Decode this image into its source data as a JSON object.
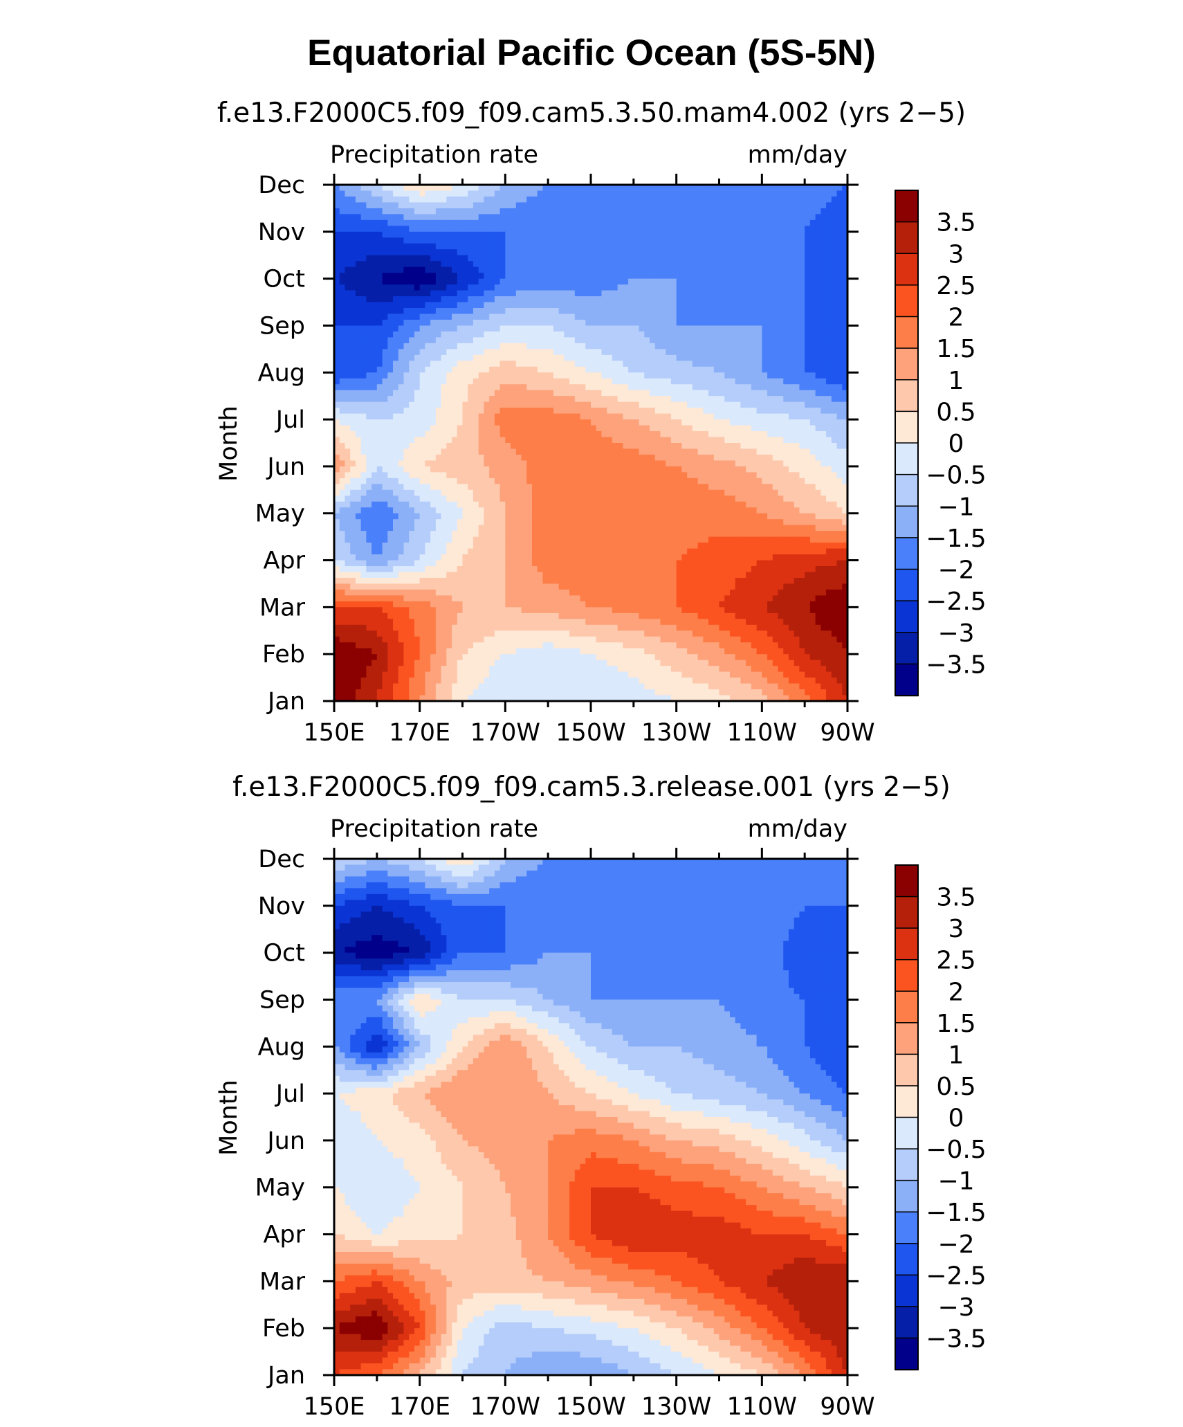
{
  "figure": {
    "title": "Equatorial Pacific Ocean (5S-5N)"
  },
  "chart_data": [
    {
      "type": "heatmap",
      "subtitle": "f.e13.F2000C5.f09_f09.cam5.3.50.mam4.002 (yrs 2−5)",
      "left_string": "Precipitation rate",
      "right_string": "mm/day",
      "ylabel": "Month",
      "xlabel": "",
      "x_tick_labels": [
        "150E",
        "170E",
        "170W",
        "150W",
        "130W",
        "110W",
        "90W"
      ],
      "y_tick_labels": [
        "Jan",
        "Feb",
        "Mar",
        "Apr",
        "May",
        "Jun",
        "Jul",
        "Aug",
        "Sep",
        "Oct",
        "Nov",
        "Dec"
      ],
      "xlim": [
        150,
        270
      ],
      "ylim": [
        "Jan",
        "Dec"
      ],
      "lon_columns": [
        150,
        160,
        170,
        180,
        190,
        200,
        210,
        220,
        230,
        240,
        250,
        260,
        270
      ],
      "values": [
        [
          4.0,
          3.0,
          1.5,
          0.0,
          -0.5,
          -0.5,
          -0.5,
          -0.3,
          0.0,
          0.3,
          0.8,
          1.8,
          3.0
        ],
        [
          4.0,
          3.5,
          2.0,
          0.5,
          0.0,
          -0.3,
          0.0,
          0.3,
          0.8,
          1.3,
          2.0,
          3.0,
          3.5
        ],
        [
          2.5,
          2.5,
          1.8,
          1.0,
          1.0,
          1.2,
          1.5,
          1.7,
          2.0,
          2.5,
          3.0,
          3.5,
          4.0
        ],
        [
          -0.5,
          -1.5,
          -0.5,
          0.5,
          1.0,
          1.8,
          1.8,
          1.8,
          2.0,
          2.2,
          2.5,
          2.8,
          3.0
        ],
        [
          -1.0,
          -2.0,
          -1.0,
          0.0,
          1.0,
          1.8,
          1.8,
          1.8,
          1.8,
          1.8,
          1.5,
          1.0,
          0.5
        ],
        [
          1.5,
          -0.5,
          0.5,
          0.8,
          1.2,
          1.8,
          1.8,
          1.8,
          1.5,
          1.2,
          0.8,
          0.3,
          -0.3
        ],
        [
          0.0,
          -0.5,
          -0.3,
          0.5,
          1.8,
          1.8,
          1.5,
          1.0,
          0.5,
          0.0,
          -0.3,
          -0.5,
          -1.0
        ],
        [
          -2.5,
          -2.0,
          -0.5,
          0.3,
          0.8,
          0.5,
          0.0,
          -0.5,
          -0.8,
          -1.0,
          -1.5,
          -2.0,
          -2.5
        ],
        [
          -2.5,
          -2.5,
          -1.5,
          -1.0,
          -0.5,
          -0.5,
          -1.0,
          -1.0,
          -1.5,
          -1.5,
          -1.5,
          -2.0,
          -2.5
        ],
        [
          -3.0,
          -3.5,
          -4.0,
          -3.0,
          -2.0,
          -1.8,
          -1.8,
          -1.5,
          -1.5,
          -1.5,
          -1.5,
          -2.0,
          -2.5
        ],
        [
          -2.5,
          -2.5,
          -2.0,
          -2.0,
          -2.0,
          -2.0,
          -1.8,
          -1.5,
          -1.5,
          -1.5,
          -1.8,
          -2.0,
          -2.5
        ],
        [
          -1.5,
          -0.5,
          0.5,
          0.0,
          -1.0,
          -1.5,
          -1.5,
          -1.5,
          -1.5,
          -1.5,
          -1.5,
          -1.5,
          -2.0
        ]
      ]
    },
    {
      "type": "heatmap",
      "subtitle": "f.e13.F2000C5.f09_f09.cam5.3.release.001 (yrs 2−5)",
      "left_string": "Precipitation rate",
      "right_string": "mm/day",
      "ylabel": "Month",
      "xlabel": "",
      "x_tick_labels": [
        "150E",
        "170E",
        "170W",
        "150W",
        "130W",
        "110W",
        "90W"
      ],
      "y_tick_labels": [
        "Jan",
        "Feb",
        "Mar",
        "Apr",
        "May",
        "Jun",
        "Jul",
        "Aug",
        "Sep",
        "Oct",
        "Nov",
        "Dec"
      ],
      "xlim": [
        150,
        270
      ],
      "ylim": [
        "Jan",
        "Dec"
      ],
      "lon_columns": [
        150,
        160,
        170,
        180,
        190,
        200,
        210,
        220,
        230,
        240,
        250,
        260,
        270
      ],
      "values": [
        [
          2.5,
          2.0,
          1.0,
          -0.5,
          -1.0,
          -1.5,
          -1.5,
          -1.0,
          -0.5,
          0.0,
          0.5,
          1.5,
          3.0
        ],
        [
          3.5,
          4.0,
          2.5,
          0.0,
          -0.8,
          -0.5,
          -0.3,
          0.0,
          0.5,
          1.2,
          2.0,
          3.0,
          3.5
        ],
        [
          2.0,
          2.5,
          1.5,
          0.8,
          0.8,
          1.0,
          1.3,
          1.6,
          2.0,
          2.5,
          3.0,
          3.5,
          3.5
        ],
        [
          0.5,
          0.0,
          0.3,
          0.5,
          0.8,
          1.5,
          2.5,
          3.0,
          2.8,
          2.8,
          2.5,
          2.5,
          2.0
        ],
        [
          0.0,
          -0.5,
          0.0,
          0.5,
          1.0,
          1.5,
          2.5,
          2.5,
          2.2,
          2.0,
          1.5,
          1.0,
          0.5
        ],
        [
          -0.5,
          0.0,
          0.3,
          1.0,
          1.2,
          1.5,
          1.8,
          1.5,
          1.0,
          0.8,
          0.3,
          -0.3,
          -1.0
        ],
        [
          0.0,
          0.3,
          1.0,
          1.5,
          1.5,
          1.0,
          0.5,
          0.0,
          -0.5,
          -0.8,
          -1.0,
          -1.5,
          -2.0
        ],
        [
          -1.5,
          -3.0,
          -1.0,
          0.5,
          1.5,
          0.5,
          -0.5,
          -1.0,
          -1.0,
          -1.2,
          -1.5,
          -2.0,
          -2.5
        ],
        [
          -1.5,
          -1.5,
          0.5,
          -0.5,
          -0.5,
          -1.0,
          -1.5,
          -1.5,
          -1.5,
          -1.5,
          -1.8,
          -2.0,
          -2.5
        ],
        [
          -3.5,
          -3.8,
          -3.5,
          -2.0,
          -2.0,
          -1.5,
          -1.5,
          -1.5,
          -1.5,
          -1.5,
          -1.5,
          -2.5,
          -2.5
        ],
        [
          -2.5,
          -3.0,
          -2.5,
          -2.0,
          -2.0,
          -2.0,
          -2.0,
          -1.5,
          -1.5,
          -1.5,
          -1.5,
          -2.0,
          -2.0
        ],
        [
          -0.5,
          -1.0,
          -0.5,
          0.5,
          -1.0,
          -1.5,
          -1.5,
          -1.5,
          -1.5,
          -1.5,
          -1.5,
          -1.5,
          -1.5
        ]
      ]
    }
  ],
  "colorbar": {
    "labels": [
      "3.5",
      "3",
      "2.5",
      "2",
      "1.5",
      "1",
      "0.5",
      "0",
      "−0.5",
      "−1",
      "−1.5",
      "−2",
      "−2.5",
      "−3",
      "−3.5"
    ],
    "levels": [
      3.5,
      3,
      2.5,
      2,
      1.5,
      1,
      0.5,
      0,
      -0.5,
      -1,
      -1.5,
      -2,
      -2.5,
      -3,
      -3.5
    ],
    "colors_top_to_bottom": [
      "#8b0000",
      "#b5200b",
      "#dc3212",
      "#fb5421",
      "#fd7e48",
      "#fda27b",
      "#fdc8ac",
      "#fee8d6",
      "#dbe9fc",
      "#b4cdfa",
      "#8cb0f8",
      "#4a80f9",
      "#1f56f0",
      "#0a35d4",
      "#061fa8",
      "#00008b"
    ]
  }
}
